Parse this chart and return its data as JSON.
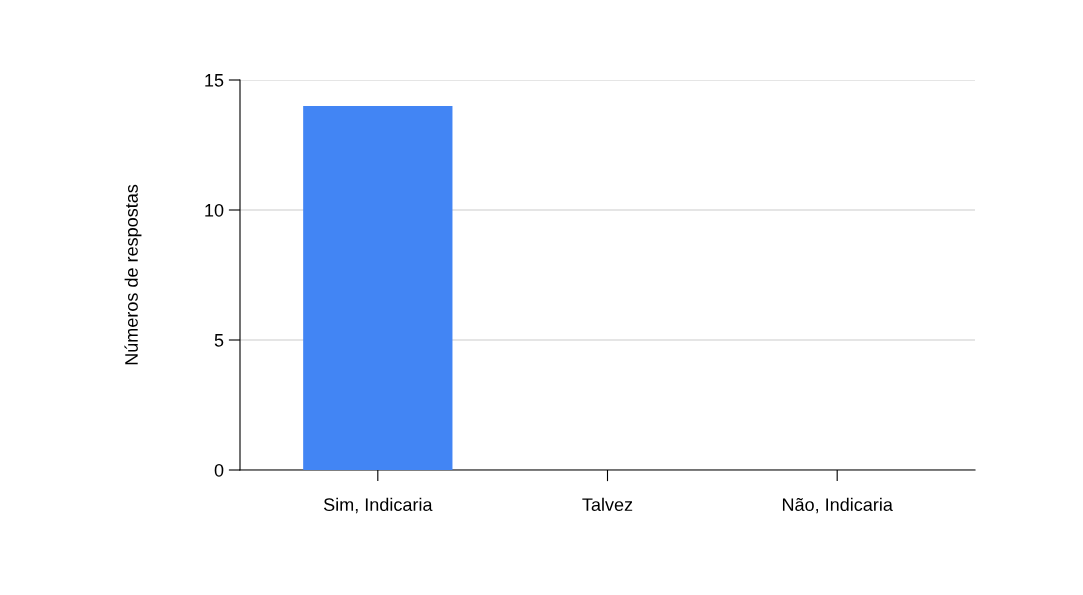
{
  "chart_data": {
    "type": "bar",
    "ylabel": "Números de respostas",
    "categories": [
      "Sim, Indicaria",
      "Talvez",
      "Não, Indicaria"
    ],
    "values": [
      14,
      0,
      0
    ],
    "color": "#4285f4",
    "ylim": [
      0,
      15
    ],
    "yticks": [
      0,
      5,
      10,
      15
    ],
    "grid": "y"
  }
}
